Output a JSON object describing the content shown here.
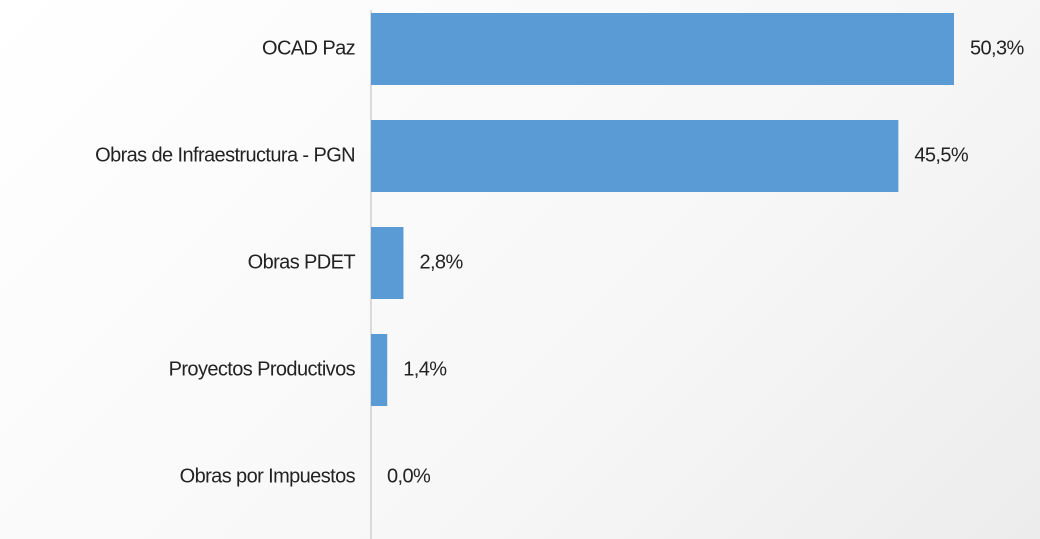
{
  "chart_data": {
    "type": "bar",
    "orientation": "horizontal",
    "categories": [
      "OCAD Paz",
      "Obras de Infraestructura - PGN",
      "Obras PDET",
      "Proyectos Productivos",
      "Obras por Impuestos"
    ],
    "values": [
      50.3,
      45.5,
      2.8,
      1.4,
      0.0
    ],
    "value_labels": [
      "50,3%",
      "45,5%",
      "2,8%",
      "1,4%",
      "0,0%"
    ],
    "color": "#5b9bd5"
  }
}
